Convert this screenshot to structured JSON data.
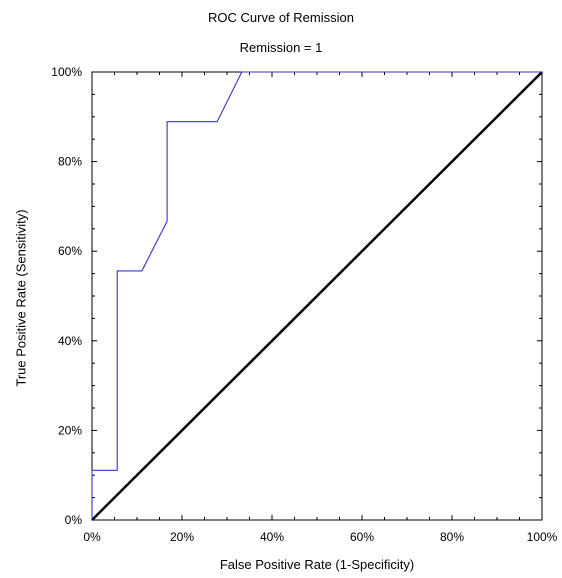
{
  "chart_data": {
    "type": "line",
    "title": "ROC Curve of Remission",
    "subtitle": "Remission = 1",
    "xlabel": "False Positive Rate (1-Specificity)",
    "ylabel": "True Positive Rate (Sensitivity)",
    "xlim": [
      0,
      100
    ],
    "ylim": [
      0,
      100
    ],
    "x_ticks": [
      "0%",
      "20%",
      "40%",
      "60%",
      "80%",
      "100%"
    ],
    "y_ticks": [
      "0%",
      "20%",
      "40%",
      "60%",
      "80%",
      "100%"
    ],
    "grid": false,
    "series": [
      {
        "color": "#3333cc",
        "x": [
          0,
          0,
          5.6,
          5.6,
          11.1,
          16.7,
          16.7,
          27.8,
          33.3,
          100
        ],
        "y": [
          0,
          11.1,
          11.1,
          55.6,
          55.6,
          66.7,
          88.9,
          88.9,
          100,
          100
        ]
      },
      {
        "color": "#000000",
        "x": [
          0,
          100
        ],
        "y": [
          0,
          100
        ]
      }
    ]
  }
}
